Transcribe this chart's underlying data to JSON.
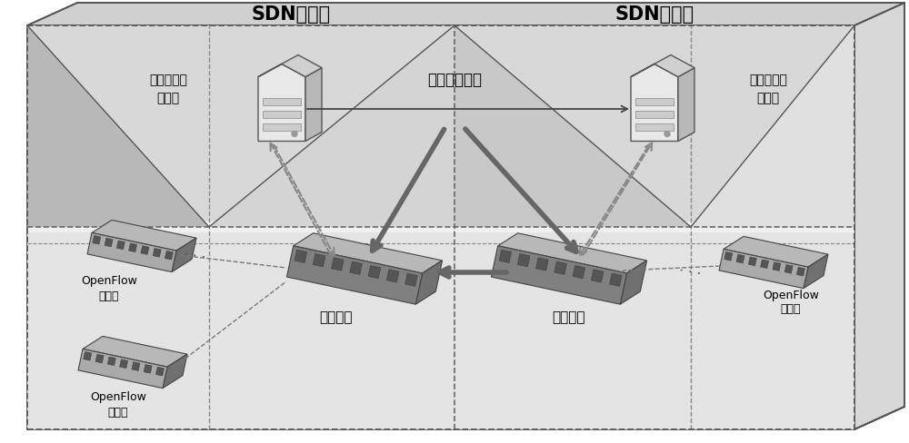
{
  "bg_outer": "#e8e8e8",
  "bg_upper_left": "#d4d4d4",
  "bg_upper_right_tri": "#c8c8c8",
  "bg_lower": "#e2e2e2",
  "bg_white_strip": "#f0f0f0",
  "border_color": "#555555",
  "grid_color": "#777777",
  "title_left": "SDN自治域",
  "title_right": "SDN自治域",
  "label_ctrl_left": "增强的安全\n控制器",
  "label_ctrl_right": "增强的安全\n控制器",
  "label_tunnel": "安全通信隐道",
  "label_proxy_left": "域间代理",
  "label_proxy_right": "域间代理",
  "label_sw1": "OpenFlow\n交换机",
  "label_sw2": "OpenFlow\n交换机",
  "label_sw3": "OpenFlow\n交换机"
}
